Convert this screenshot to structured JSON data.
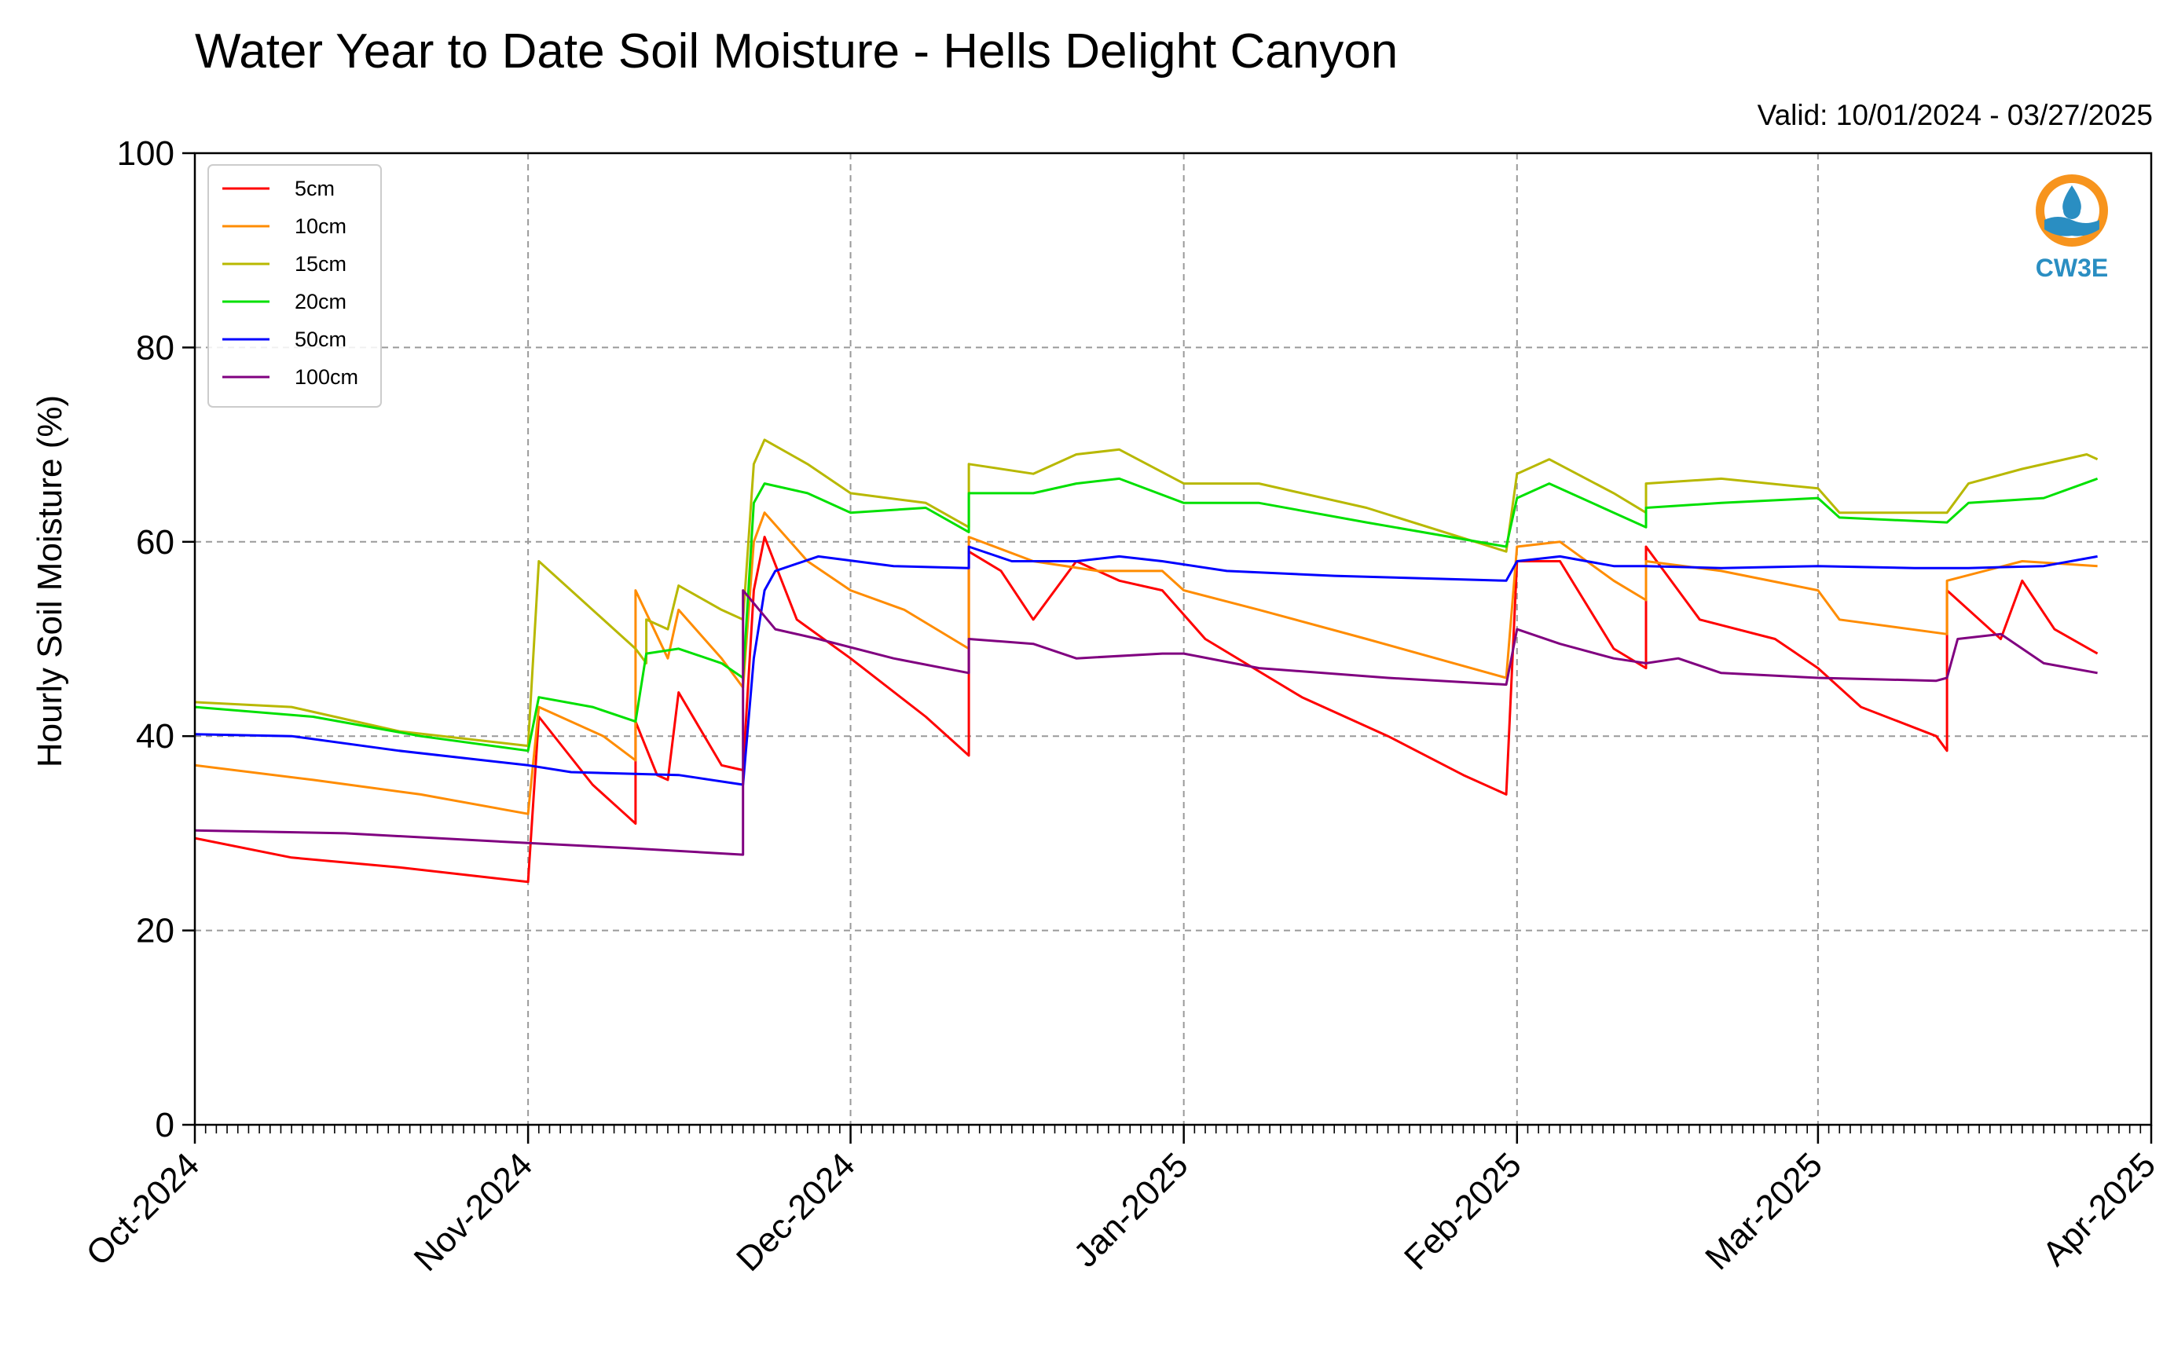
{
  "chart_data": {
    "type": "line",
    "title": "Water Year to Date Soil Moisture - Hells Delight Canyon",
    "subtitle": "Valid: 10/01/2024 - 03/27/2025",
    "ylabel": "Hourly Soil Moisture (%)",
    "xlabel": "",
    "ylim": [
      0,
      100
    ],
    "xlim": [
      "2024-10-01",
      "2025-04-01"
    ],
    "yticks": [
      0,
      20,
      40,
      60,
      80,
      100
    ],
    "xticks": [
      {
        "date": "2024-10-01",
        "label": "Oct-2024"
      },
      {
        "date": "2024-11-01",
        "label": "Nov-2024"
      },
      {
        "date": "2024-12-01",
        "label": "Dec-2024"
      },
      {
        "date": "2025-01-01",
        "label": "Jan-2025"
      },
      {
        "date": "2025-02-01",
        "label": "Feb-2025"
      },
      {
        "date": "2025-03-01",
        "label": "Mar-2025"
      },
      {
        "date": "2025-04-01",
        "label": "Apr-2025"
      }
    ],
    "grid": true,
    "legend_position": "top-left",
    "series": [
      {
        "name": "5cm",
        "color": "#ff0000",
        "points": [
          [
            "2024-10-01",
            29.5
          ],
          [
            "2024-10-10",
            27.5
          ],
          [
            "2024-10-20",
            26.5
          ],
          [
            "2024-10-28",
            25.5
          ],
          [
            "2024-11-01",
            25
          ],
          [
            "2024-11-02",
            42
          ],
          [
            "2024-11-07",
            35
          ],
          [
            "2024-11-10",
            32
          ],
          [
            "2024-11-11",
            31
          ],
          [
            "2024-11-11",
            41.5
          ],
          [
            "2024-11-13",
            36
          ],
          [
            "2024-11-14",
            35.5
          ],
          [
            "2024-11-15",
            44.5
          ],
          [
            "2024-11-19",
            37
          ],
          [
            "2024-11-21",
            36.5
          ],
          [
            "2024-11-22",
            55
          ],
          [
            "2024-11-23",
            60.5
          ],
          [
            "2024-11-26",
            52
          ],
          [
            "2024-12-01",
            48
          ],
          [
            "2024-12-08",
            42
          ],
          [
            "2024-12-12",
            38
          ],
          [
            "2024-12-12",
            59
          ],
          [
            "2024-12-15",
            57
          ],
          [
            "2024-12-18",
            52
          ],
          [
            "2024-12-22",
            58
          ],
          [
            "2024-12-26",
            56
          ],
          [
            "2024-12-30",
            55
          ],
          [
            "2025-01-03",
            50
          ],
          [
            "2025-01-12",
            44
          ],
          [
            "2025-01-20",
            40
          ],
          [
            "2025-01-27",
            36
          ],
          [
            "2025-01-31",
            34
          ],
          [
            "2025-02-01",
            58
          ],
          [
            "2025-02-05",
            58
          ],
          [
            "2025-02-10",
            49
          ],
          [
            "2025-02-13",
            47
          ],
          [
            "2025-02-13",
            59.5
          ],
          [
            "2025-02-18",
            52
          ],
          [
            "2025-02-25",
            50
          ],
          [
            "2025-03-01",
            47
          ],
          [
            "2025-03-05",
            43
          ],
          [
            "2025-03-12",
            40
          ],
          [
            "2025-03-13",
            38.5
          ],
          [
            "2025-03-13",
            55
          ],
          [
            "2025-03-18",
            50
          ],
          [
            "2025-03-20",
            56
          ],
          [
            "2025-03-23",
            51
          ],
          [
            "2025-03-27",
            48.5
          ]
        ]
      },
      {
        "name": "10cm",
        "color": "#ff8c00",
        "points": [
          [
            "2024-10-01",
            37
          ],
          [
            "2024-10-12",
            35.5
          ],
          [
            "2024-10-22",
            34
          ],
          [
            "2024-11-01",
            32
          ],
          [
            "2024-11-02",
            43
          ],
          [
            "2024-11-08",
            40
          ],
          [
            "2024-11-11",
            37.5
          ],
          [
            "2024-11-11",
            55
          ],
          [
            "2024-11-14",
            48
          ],
          [
            "2024-11-15",
            53
          ],
          [
            "2024-11-19",
            48
          ],
          [
            "2024-11-21",
            45
          ],
          [
            "2024-11-22",
            60
          ],
          [
            "2024-11-23",
            63
          ],
          [
            "2024-11-27",
            58
          ],
          [
            "2024-12-01",
            55
          ],
          [
            "2024-12-06",
            53
          ],
          [
            "2024-12-12",
            49
          ],
          [
            "2024-12-12",
            60.5
          ],
          [
            "2024-12-18",
            58
          ],
          [
            "2024-12-24",
            57
          ],
          [
            "2024-12-30",
            57
          ],
          [
            "2025-01-01",
            55
          ],
          [
            "2025-01-08",
            53
          ],
          [
            "2025-01-18",
            50
          ],
          [
            "2025-01-31",
            46
          ],
          [
            "2025-02-01",
            59.5
          ],
          [
            "2025-02-05",
            60
          ],
          [
            "2025-02-10",
            56
          ],
          [
            "2025-02-13",
            54
          ],
          [
            "2025-02-13",
            58
          ],
          [
            "2025-02-20",
            57
          ],
          [
            "2025-03-01",
            55
          ],
          [
            "2025-03-03",
            52
          ],
          [
            "2025-03-13",
            50.5
          ],
          [
            "2025-03-13",
            56
          ],
          [
            "2025-03-20",
            58
          ],
          [
            "2025-03-27",
            57.5
          ]
        ]
      },
      {
        "name": "15cm",
        "color": "#b8b800",
        "points": [
          [
            "2024-10-01",
            43.5
          ],
          [
            "2024-10-10",
            43
          ],
          [
            "2024-10-20",
            40.5
          ],
          [
            "2024-11-01",
            39
          ],
          [
            "2024-11-02",
            58
          ],
          [
            "2024-11-06",
            54
          ],
          [
            "2024-11-11",
            49
          ],
          [
            "2024-11-12",
            47.5
          ],
          [
            "2024-11-12",
            52
          ],
          [
            "2024-11-14",
            51
          ],
          [
            "2024-11-15",
            55.5
          ],
          [
            "2024-11-19",
            53
          ],
          [
            "2024-11-21",
            52
          ],
          [
            "2024-11-22",
            68
          ],
          [
            "2024-11-23",
            70.5
          ],
          [
            "2024-11-27",
            68
          ],
          [
            "2024-12-01",
            65
          ],
          [
            "2024-12-08",
            64
          ],
          [
            "2024-12-12",
            61.5
          ],
          [
            "2024-12-12",
            68
          ],
          [
            "2024-12-18",
            67
          ],
          [
            "2024-12-22",
            69
          ],
          [
            "2024-12-26",
            69.5
          ],
          [
            "2025-01-01",
            66
          ],
          [
            "2025-01-08",
            66
          ],
          [
            "2025-01-18",
            63.5
          ],
          [
            "2025-01-31",
            59
          ],
          [
            "2025-02-01",
            67
          ],
          [
            "2025-02-04",
            68.5
          ],
          [
            "2025-02-10",
            65
          ],
          [
            "2025-02-13",
            63
          ],
          [
            "2025-02-13",
            66
          ],
          [
            "2025-02-20",
            66.5
          ],
          [
            "2025-03-01",
            65.5
          ],
          [
            "2025-03-03",
            63
          ],
          [
            "2025-03-13",
            63
          ],
          [
            "2025-03-15",
            66
          ],
          [
            "2025-03-20",
            67.5
          ],
          [
            "2025-03-26",
            69
          ],
          [
            "2025-03-27",
            68.5
          ]
        ]
      },
      {
        "name": "20cm",
        "color": "#00e000",
        "points": [
          [
            "2024-10-01",
            43
          ],
          [
            "2024-10-12",
            42
          ],
          [
            "2024-10-22",
            40
          ],
          [
            "2024-11-01",
            38.5
          ],
          [
            "2024-11-02",
            44
          ],
          [
            "2024-11-07",
            43
          ],
          [
            "2024-11-11",
            41.5
          ],
          [
            "2024-11-12",
            48.5
          ],
          [
            "2024-11-15",
            49
          ],
          [
            "2024-11-19",
            47.5
          ],
          [
            "2024-11-21",
            46
          ],
          [
            "2024-11-22",
            64
          ],
          [
            "2024-11-23",
            66
          ],
          [
            "2024-11-27",
            65
          ],
          [
            "2024-12-01",
            63
          ],
          [
            "2024-12-08",
            63.5
          ],
          [
            "2024-12-12",
            61
          ],
          [
            "2024-12-12",
            65
          ],
          [
            "2024-12-18",
            65
          ],
          [
            "2024-12-22",
            66
          ],
          [
            "2024-12-26",
            66.5
          ],
          [
            "2025-01-01",
            64
          ],
          [
            "2025-01-08",
            64
          ],
          [
            "2025-01-18",
            62
          ],
          [
            "2025-01-31",
            59.5
          ],
          [
            "2025-02-01",
            64.5
          ],
          [
            "2025-02-04",
            66
          ],
          [
            "2025-02-10",
            63
          ],
          [
            "2025-02-13",
            61.5
          ],
          [
            "2025-02-13",
            63.5
          ],
          [
            "2025-02-20",
            64
          ],
          [
            "2025-03-01",
            64.5
          ],
          [
            "2025-03-03",
            62.5
          ],
          [
            "2025-03-13",
            62
          ],
          [
            "2025-03-15",
            64
          ],
          [
            "2025-03-22",
            64.5
          ],
          [
            "2025-03-27",
            66.5
          ]
        ]
      },
      {
        "name": "50cm",
        "color": "#0000ff",
        "points": [
          [
            "2024-10-01",
            40.2
          ],
          [
            "2024-10-10",
            40
          ],
          [
            "2024-10-20",
            38.5
          ],
          [
            "2024-11-01",
            37
          ],
          [
            "2024-11-05",
            36.3
          ],
          [
            "2024-11-15",
            36
          ],
          [
            "2024-11-21",
            35
          ],
          [
            "2024-11-22",
            48
          ],
          [
            "2024-11-23",
            55
          ],
          [
            "2024-11-24",
            57
          ],
          [
            "2024-11-28",
            58.5
          ],
          [
            "2024-12-05",
            57.5
          ],
          [
            "2024-12-12",
            57.3
          ],
          [
            "2024-12-12",
            59.5
          ],
          [
            "2024-12-16",
            58
          ],
          [
            "2024-12-22",
            58
          ],
          [
            "2024-12-26",
            58.5
          ],
          [
            "2024-12-30",
            58
          ],
          [
            "2025-01-05",
            57
          ],
          [
            "2025-01-15",
            56.5
          ],
          [
            "2025-01-31",
            56
          ],
          [
            "2025-02-01",
            58
          ],
          [
            "2025-02-05",
            58.5
          ],
          [
            "2025-02-10",
            57.5
          ],
          [
            "2025-02-13",
            57.5
          ],
          [
            "2025-02-20",
            57.3
          ],
          [
            "2025-03-01",
            57.5
          ],
          [
            "2025-03-10",
            57.3
          ],
          [
            "2025-03-15",
            57.3
          ],
          [
            "2025-03-22",
            57.5
          ],
          [
            "2025-03-27",
            58.5
          ]
        ]
      },
      {
        "name": "100cm",
        "color": "#800080",
        "points": [
          [
            "2024-10-01",
            30.3
          ],
          [
            "2024-10-15",
            30
          ],
          [
            "2024-11-01",
            29
          ],
          [
            "2024-11-10",
            28.5
          ],
          [
            "2024-11-21",
            27.8
          ],
          [
            "2024-11-21",
            55
          ],
          [
            "2024-11-24",
            51
          ],
          [
            "2024-11-28",
            50
          ],
          [
            "2024-12-05",
            48
          ],
          [
            "2024-12-12",
            46.5
          ],
          [
            "2024-12-12",
            50
          ],
          [
            "2024-12-18",
            49.5
          ],
          [
            "2024-12-22",
            48
          ],
          [
            "2024-12-30",
            48.5
          ],
          [
            "2025-01-01",
            48.5
          ],
          [
            "2025-01-08",
            47
          ],
          [
            "2025-01-20",
            46
          ],
          [
            "2025-01-31",
            45.3
          ],
          [
            "2025-02-01",
            51
          ],
          [
            "2025-02-05",
            49.5
          ],
          [
            "2025-02-10",
            48
          ],
          [
            "2025-02-13",
            47.5
          ],
          [
            "2025-02-16",
            48
          ],
          [
            "2025-02-20",
            46.5
          ],
          [
            "2025-03-01",
            46
          ],
          [
            "2025-03-12",
            45.7
          ],
          [
            "2025-03-13",
            46
          ],
          [
            "2025-03-14",
            50
          ],
          [
            "2025-03-18",
            50.5
          ],
          [
            "2025-03-22",
            47.5
          ],
          [
            "2025-03-27",
            46.5
          ]
        ]
      }
    ]
  },
  "logo": {
    "text": "CW3E"
  }
}
